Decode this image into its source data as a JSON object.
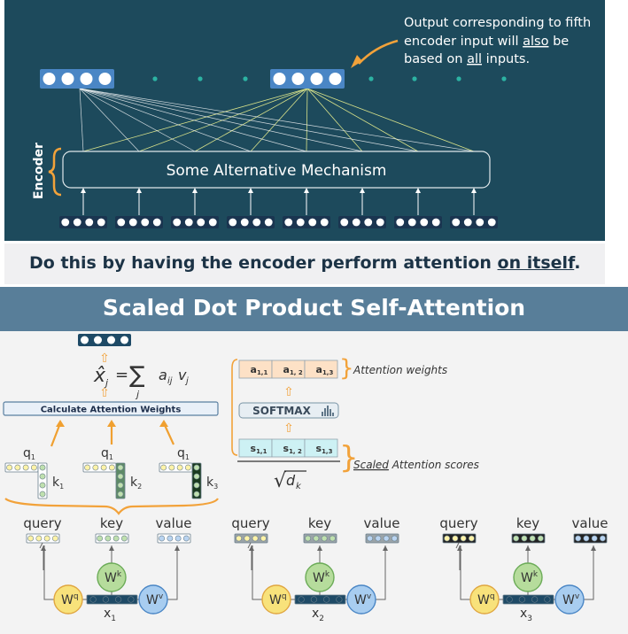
{
  "encoder_slide": {
    "callout": [
      "Output corresponding to fifth",
      "encoder input will also be",
      "based on all inputs."
    ],
    "callout_underlined": [
      "also",
      "all"
    ],
    "encoder_label": "Encoder",
    "mechanism_label": "Some Alternative Mechanism",
    "banner": {
      "before": "Do this by having the encoder perform attention ",
      "underlined": "on itself",
      "after": "."
    }
  },
  "attention_slide": {
    "title": "Scaled Dot Product Self-Attention",
    "calc_box": "Calculate Attention Weights",
    "formula": {
      "lhs": "x̂",
      "lhs_sub": "j",
      "eq": "=",
      "sum": "∑",
      "sum_sub": "j",
      "rhs": "a",
      "rhs_sub": "ij",
      "rhs2": "v",
      "rhs2_sub": "j"
    },
    "softmax_label": "SOFTMAX",
    "attention_weights_label": "Attention weights",
    "scaled_scores_label": {
      "underlined": "Scaled",
      "rest": " Attention scores"
    },
    "weights": [
      [
        "a",
        "1,1"
      ],
      [
        "a",
        "1, 2"
      ],
      [
        "a",
        "1,3"
      ]
    ],
    "scores": [
      [
        "s",
        "1,1"
      ],
      [
        "s",
        "1, 2"
      ],
      [
        "s",
        "1,3"
      ]
    ],
    "sqrt_label": "√",
    "sqrt_var": "d",
    "sqrt_sub": "k",
    "q_label": "q",
    "q_sub": "1",
    "k_label": "k",
    "k_subs": [
      "1",
      "2",
      "3"
    ],
    "groups": [
      {
        "query": "query",
        "key": "key",
        "value": "value",
        "wq": "W",
        "wq_sup": "q",
        "wk": "W",
        "wk_sup": "k",
        "wv": "W",
        "wv_sup": "v",
        "x": "x",
        "x_sub": "1"
      },
      {
        "query": "query",
        "key": "key",
        "value": "value",
        "wq": "W",
        "wq_sup": "q",
        "wk": "W",
        "wk_sup": "k",
        "wv": "W",
        "wv_sup": "v",
        "x": "x",
        "x_sub": "2"
      },
      {
        "query": "query",
        "key": "key",
        "value": "value",
        "wq": "W",
        "wq_sup": "q",
        "wk": "W",
        "wk_sup": "k",
        "wv": "W",
        "wv_sup": "v",
        "x": "x",
        "x_sub": "3"
      }
    ],
    "colors": {
      "query": "#fff3a8",
      "key": "#bfe0ae",
      "value": "#b9d4f1",
      "weights": "#fde1c6",
      "scores": "#cdf1f4",
      "arrow": "#f0a030"
    }
  }
}
